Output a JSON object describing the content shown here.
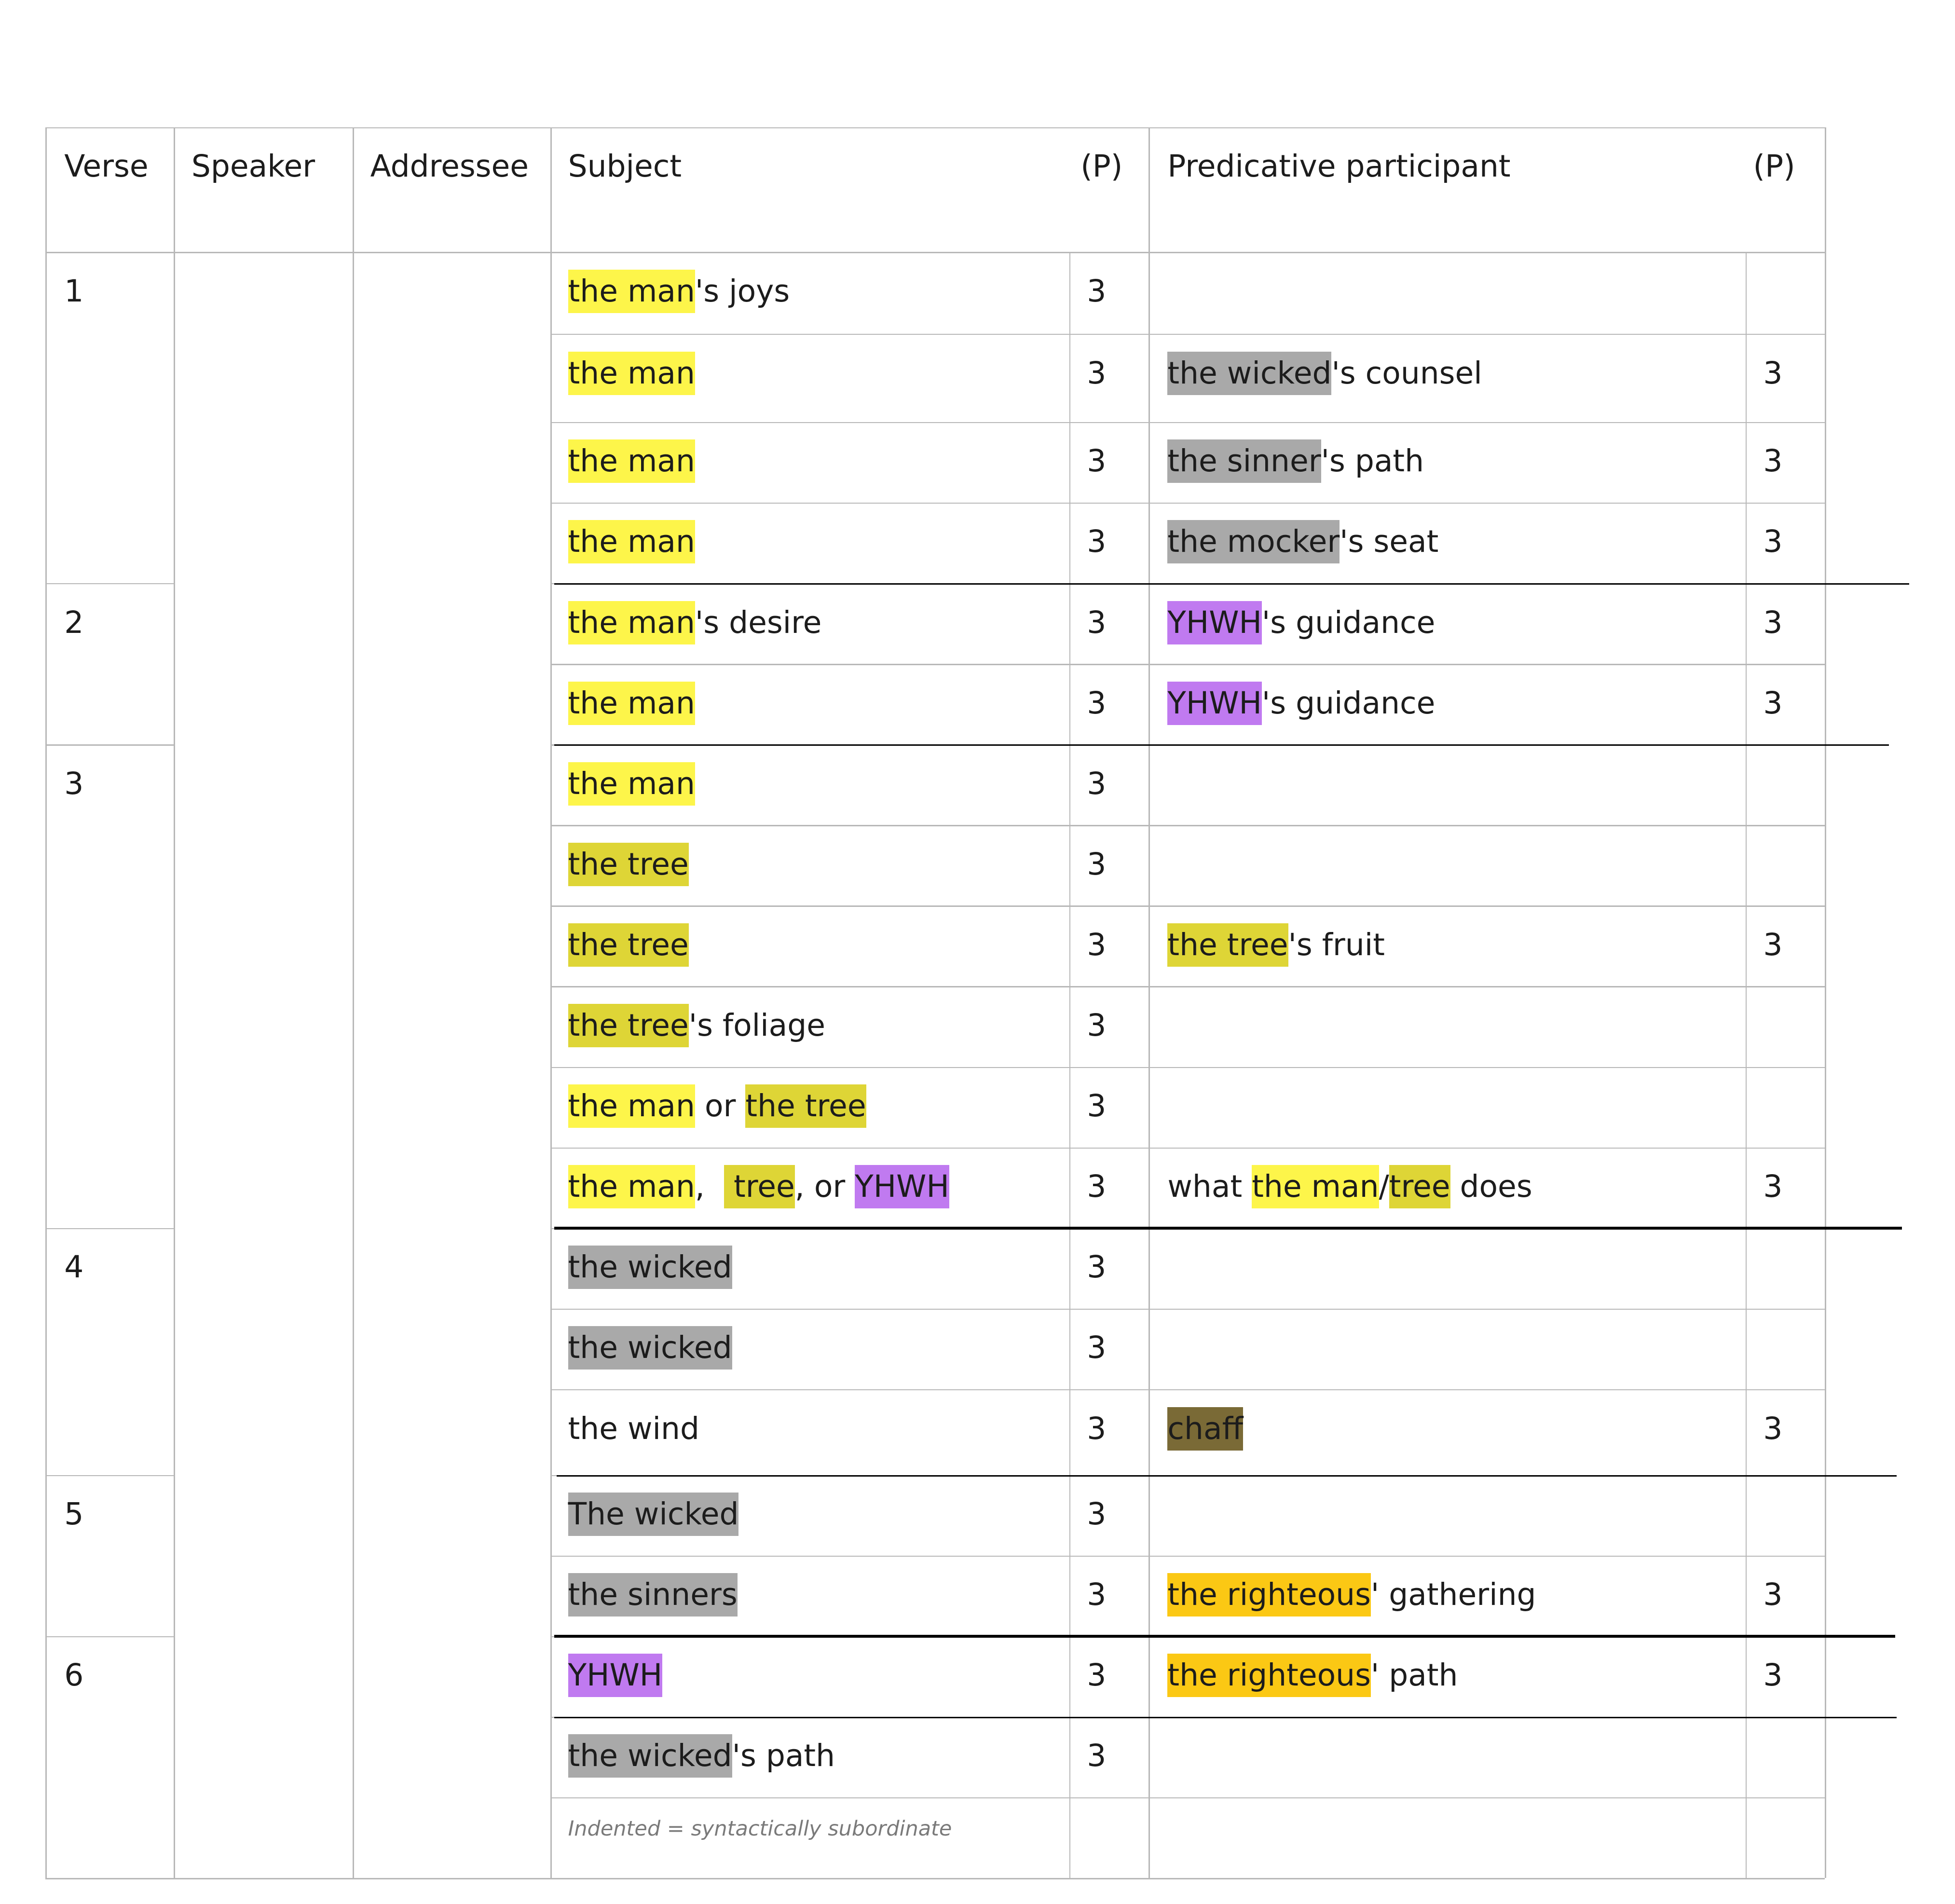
{
  "colors": {
    "man": "#fdf54a",
    "tree": "#ded536",
    "yhwh": "#c07af0",
    "wicked": "#a9a9a9",
    "chaff": "#7a6a36",
    "righteous": "#fbc814",
    "grid": "#b8b8b8",
    "rule": "#000000"
  },
  "header": {
    "verse": "Verse",
    "speaker": "Speaker",
    "addressee": "Addressee",
    "subject": "Subject",
    "subject_p": "(P)",
    "predicative": "Predicative participant",
    "predicative_p": "(P)"
  },
  "verses": [
    "1",
    "2",
    "3",
    "4",
    "5",
    "6"
  ],
  "rows": [
    {
      "subject": [
        {
          "t": "the man",
          "c": "man"
        },
        {
          "t": "'s joys"
        }
      ],
      "sp": "3",
      "pred": [],
      "pp": ""
    },
    {
      "subject": [
        {
          "t": "the man",
          "c": "man"
        }
      ],
      "sp": "3",
      "pred": [
        {
          "t": "the wicked",
          "c": "wicked"
        },
        {
          "t": "'s counsel"
        }
      ],
      "pp": "3"
    },
    {
      "subject": [
        {
          "t": "the man",
          "c": "man"
        }
      ],
      "sp": "3",
      "pred": [
        {
          "t": "the sinner",
          "c": "wicked"
        },
        {
          "t": "'s path"
        }
      ],
      "pp": "3"
    },
    {
      "subject": [
        {
          "t": "the man",
          "c": "man"
        }
      ],
      "sp": "3",
      "pred": [
        {
          "t": "the mocker",
          "c": "wicked"
        },
        {
          "t": "'s seat"
        }
      ],
      "pp": "3"
    },
    {
      "subject": [
        {
          "t": "the man",
          "c": "man"
        },
        {
          "t": "'s desire"
        }
      ],
      "sp": "3",
      "pred": [
        {
          "t": "YHWH",
          "c": "yhwh"
        },
        {
          "t": "'s guidance"
        }
      ],
      "pp": "3"
    },
    {
      "subject": [
        {
          "t": "the man",
          "c": "man"
        }
      ],
      "sp": "3",
      "pred": [
        {
          "t": "YHWH",
          "c": "yhwh"
        },
        {
          "t": "'s guidance"
        }
      ],
      "pp": "3"
    },
    {
      "subject": [
        {
          "t": "the man",
          "c": "man"
        }
      ],
      "sp": "3",
      "pred": [],
      "pp": ""
    },
    {
      "subject": [
        {
          "t": "the tree",
          "c": "tree"
        }
      ],
      "sp": "3",
      "pred": [],
      "pp": ""
    },
    {
      "subject": [
        {
          "t": "the tree",
          "c": "tree"
        }
      ],
      "sp": "3",
      "pred": [
        {
          "t": "the tree",
          "c": "tree"
        },
        {
          "t": "'s fruit"
        }
      ],
      "pp": "3"
    },
    {
      "subject": [
        {
          "t": "the tree",
          "c": "tree"
        },
        {
          "t": "'s foliage"
        }
      ],
      "sp": "3",
      "pred": [],
      "pp": ""
    },
    {
      "subject": [
        {
          "t": "the man",
          "c": "man"
        },
        {
          "t": " or "
        },
        {
          "t": "the tree",
          "c": "tree"
        }
      ],
      "sp": "3",
      "pred": [],
      "pp": ""
    },
    {
      "subject": [
        {
          "t": "the man",
          "c": "man"
        },
        {
          "t": ",  "
        },
        {
          "t": " tree",
          "c": "tree"
        },
        {
          "t": ", or "
        },
        {
          "t": "YHWH",
          "c": "yhwh"
        }
      ],
      "sp": "3",
      "pred": [
        {
          "t": "what "
        },
        {
          "t": "the man",
          "c": "man"
        },
        {
          "t": "/"
        },
        {
          "t": "tree",
          "c": "tree"
        },
        {
          "t": " does"
        }
      ],
      "pp": "3"
    },
    {
      "subject": [
        {
          "t": "the wicked",
          "c": "wicked"
        }
      ],
      "sp": "3",
      "pred": [],
      "pp": ""
    },
    {
      "subject": [
        {
          "t": "the wicked",
          "c": "wicked"
        }
      ],
      "sp": "3",
      "pred": [],
      "pp": ""
    },
    {
      "subject": [
        {
          "t": "the wind"
        }
      ],
      "sp": "3",
      "pred": [
        {
          "t": "chaff",
          "c": "chaff"
        }
      ],
      "pp": "3"
    },
    {
      "subject": [
        {
          "t": "The wicked",
          "c": "wicked"
        }
      ],
      "sp": "3",
      "pred": [],
      "pp": ""
    },
    {
      "subject": [
        {
          "t": "the sinners",
          "c": "wicked"
        }
      ],
      "sp": "3",
      "pred": [
        {
          "t": "the righteous",
          "c": "righteous"
        },
        {
          "t": "' gathering"
        }
      ],
      "pp": "3"
    },
    {
      "subject": [
        {
          "t": "YHWH",
          "c": "yhwh"
        }
      ],
      "sp": "3",
      "pred": [
        {
          "t": "the righteous",
          "c": "righteous"
        },
        {
          "t": "' path"
        }
      ],
      "pp": "3"
    },
    {
      "subject": [
        {
          "t": "the wicked",
          "c": "wicked"
        },
        {
          "t": "'s path"
        }
      ],
      "sp": "3",
      "pred": [],
      "pp": ""
    }
  ],
  "note": "Indented = syntactically subordinate"
}
